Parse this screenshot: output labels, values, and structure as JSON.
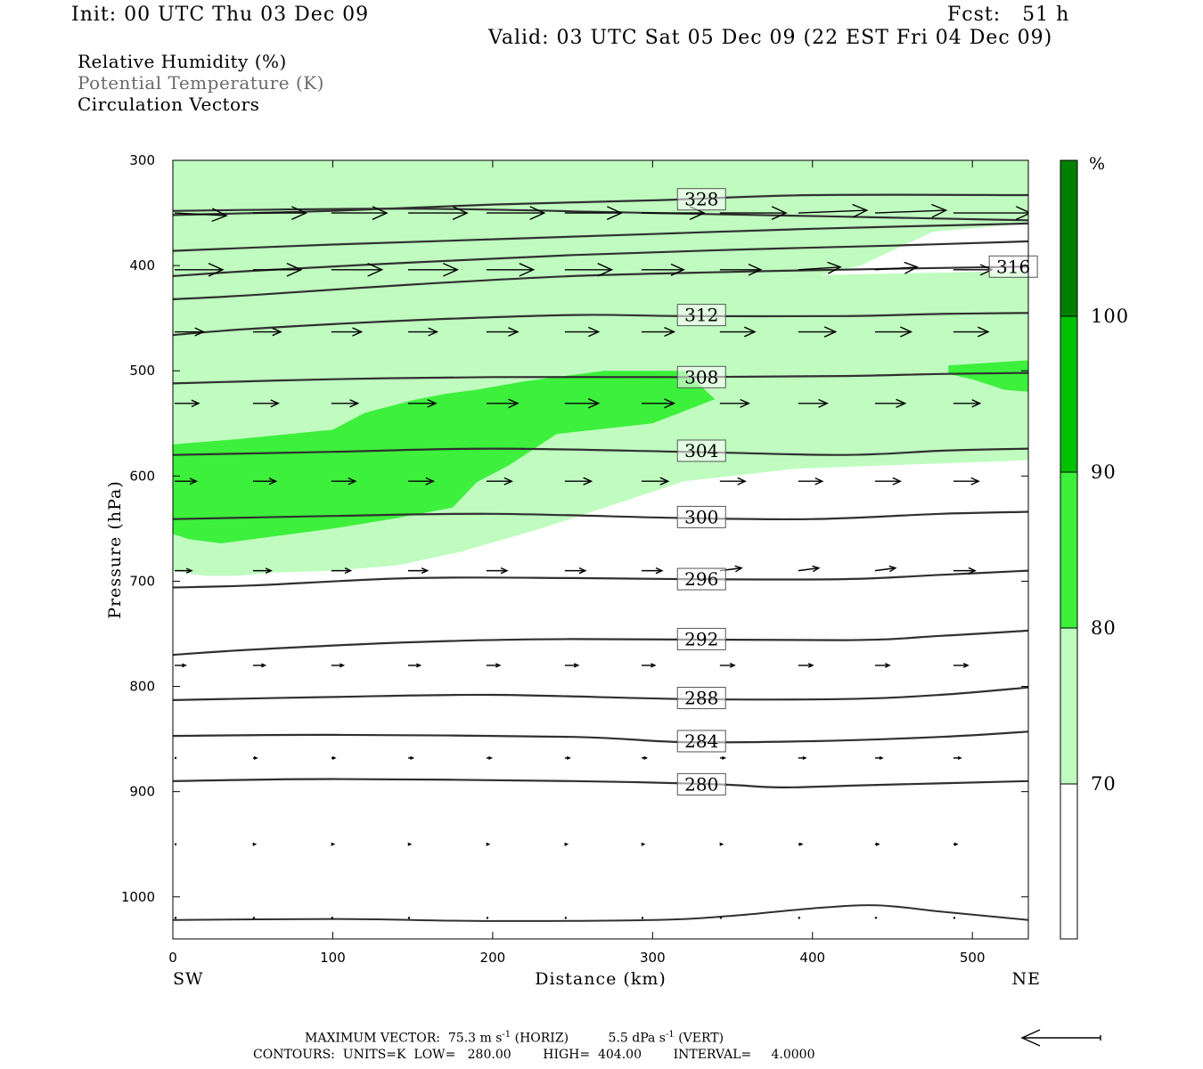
{
  "header": {
    "init": "Init: 00 UTC Thu 03 Dec 09",
    "fcst": "Fcst:   51 h",
    "valid": "Valid: 03 UTC Sat 05 Dec 09 (22 EST Fri 04 Dec 09)"
  },
  "legend": {
    "rh": "Relative Humidity (%)",
    "theta": "Potential Temperature (K)",
    "vectors": "Circulation Vectors"
  },
  "footer": {
    "max_vector_prefix": "MAXIMUM VECTOR:  75.3 m s",
    "max_vector_horiz_suffix": " (HORIZ)",
    "max_vector_vert_prefix": "5.5 dPa s",
    "max_vector_vert_suffix": " (VERT)",
    "exponent": "-1",
    "contours": "CONTOURS:  UNITS=K  LOW=   280.00        HIGH=  404.00        INTERVAL=     4.0000"
  },
  "colors": {
    "rh_70": "#c0fcc0",
    "rh_80": "#3cf03c",
    "rh_90": "#00c000",
    "rh_100": "#008000",
    "contour": "#303030"
  },
  "chart_data": {
    "type": "cross-section",
    "x_label": "Distance (km)",
    "y_label": "Pressure (hPa)",
    "x_range": [
      0,
      535
    ],
    "y_range": [
      300,
      1040
    ],
    "y_log": false,
    "x_ticks": [
      "0",
      "100",
      "200",
      "300",
      "400",
      "500"
    ],
    "x_tick_values": [
      0,
      100,
      200,
      300,
      400,
      500
    ],
    "y_ticks": [
      "300",
      "400",
      "500",
      "600",
      "700",
      "800",
      "900",
      "1000"
    ],
    "y_tick_values": [
      300,
      400,
      500,
      600,
      700,
      800,
      900,
      1000
    ],
    "x_end_labels": {
      "left": "SW",
      "right": "NE"
    },
    "colorbar": {
      "unit": "%",
      "levels": [
        "70",
        "80",
        "90",
        "100"
      ],
      "level_values": [
        70,
        80,
        90,
        100
      ]
    },
    "rh_regions": [
      {
        "level": 70,
        "polygon": [
          [
            0,
            300
          ],
          [
            330,
            300
          ],
          [
            535,
            300
          ],
          [
            535,
            360
          ],
          [
            475,
            368
          ],
          [
            430,
            400
          ],
          [
            380,
            418
          ],
          [
            300,
            432
          ],
          [
            250,
            452
          ],
          [
            200,
            475
          ],
          [
            150,
            500
          ],
          [
            110,
            515
          ],
          [
            80,
            530
          ],
          [
            60,
            540
          ],
          [
            40,
            556
          ],
          [
            20,
            568
          ],
          [
            0,
            575
          ]
        ]
      },
      {
        "level": 70,
        "polygon": [
          [
            0,
            430
          ],
          [
            100,
            428
          ],
          [
            0,
            447
          ]
        ]
      },
      {
        "level": 70,
        "polygon": [
          [
            110,
            418
          ],
          [
            535,
            405
          ],
          [
            535,
            585
          ],
          [
            480,
            588
          ],
          [
            390,
            593
          ],
          [
            320,
            605
          ],
          [
            280,
            625
          ],
          [
            230,
            650
          ],
          [
            180,
            672
          ],
          [
            140,
            685
          ],
          [
            100,
            690
          ],
          [
            60,
            692
          ],
          [
            40,
            695
          ],
          [
            20,
            695
          ],
          [
            0,
            690
          ],
          [
            0,
            430
          ],
          [
            45,
            400
          ],
          [
            100,
            402
          ]
        ]
      },
      {
        "level": 80,
        "polygon": [
          [
            0,
            570
          ],
          [
            40,
            565
          ],
          [
            100,
            556
          ],
          [
            120,
            540
          ],
          [
            150,
            528
          ],
          [
            170,
            522
          ],
          [
            190,
            518
          ],
          [
            220,
            510
          ],
          [
            270,
            500
          ],
          [
            320,
            500
          ],
          [
            339,
            527
          ],
          [
            300,
            550
          ],
          [
            240,
            560
          ],
          [
            220,
            580
          ],
          [
            210,
            590
          ],
          [
            190,
            606
          ],
          [
            175,
            630
          ],
          [
            140,
            640
          ],
          [
            100,
            650
          ],
          [
            50,
            660
          ],
          [
            30,
            664
          ],
          [
            10,
            660
          ],
          [
            0,
            655
          ]
        ]
      },
      {
        "level": 80,
        "polygon": [
          [
            485,
            495
          ],
          [
            535,
            490
          ],
          [
            535,
            520
          ],
          [
            520,
            518
          ],
          [
            500,
            508
          ],
          [
            485,
            503
          ]
        ]
      }
    ],
    "contours": [
      {
        "value": 280,
        "label": true,
        "points": [
          [
            0,
            890
          ],
          [
            100,
            888
          ],
          [
            250,
            890
          ],
          [
            340,
            893
          ],
          [
            380,
            896
          ],
          [
            430,
            894
          ],
          [
            535,
            890
          ]
        ]
      },
      {
        "value": 284,
        "label": true,
        "points": [
          [
            0,
            847
          ],
          [
            100,
            846
          ],
          [
            250,
            848
          ],
          [
            320,
            853
          ],
          [
            400,
            852
          ],
          [
            480,
            848
          ],
          [
            535,
            843
          ]
        ]
      },
      {
        "value": 288,
        "label": true,
        "points": [
          [
            0,
            813
          ],
          [
            100,
            810
          ],
          [
            200,
            808
          ],
          [
            320,
            812
          ],
          [
            420,
            812
          ],
          [
            480,
            808
          ],
          [
            535,
            801
          ]
        ]
      },
      {
        "value": 292,
        "label": true,
        "points": [
          [
            0,
            770
          ],
          [
            50,
            765
          ],
          [
            150,
            758
          ],
          [
            250,
            755
          ],
          [
            420,
            756
          ],
          [
            480,
            752
          ],
          [
            535,
            747
          ]
        ]
      },
      {
        "value": 296,
        "label": true,
        "points": [
          [
            0,
            706
          ],
          [
            50,
            704
          ],
          [
            150,
            697
          ],
          [
            250,
            697
          ],
          [
            320,
            698
          ],
          [
            420,
            698
          ],
          [
            480,
            694
          ],
          [
            535,
            690
          ]
        ]
      },
      {
        "value": 300,
        "label": true,
        "points": [
          [
            0,
            641
          ],
          [
            100,
            638
          ],
          [
            200,
            636
          ],
          [
            320,
            640
          ],
          [
            400,
            641
          ],
          [
            480,
            636
          ],
          [
            535,
            634
          ]
        ]
      },
      {
        "value": 304,
        "label": true,
        "points": [
          [
            0,
            580
          ],
          [
            100,
            577
          ],
          [
            200,
            574
          ],
          [
            320,
            577
          ],
          [
            420,
            580
          ],
          [
            480,
            576
          ],
          [
            535,
            574
          ]
        ]
      },
      {
        "value": 308,
        "label": true,
        "points": [
          [
            0,
            512
          ],
          [
            100,
            508
          ],
          [
            200,
            506
          ],
          [
            320,
            506
          ],
          [
            420,
            505
          ],
          [
            480,
            503
          ],
          [
            535,
            502
          ]
        ]
      },
      {
        "value": 312,
        "label": true,
        "points": [
          [
            0,
            466
          ],
          [
            50,
            460
          ],
          [
            150,
            452
          ],
          [
            250,
            447
          ],
          [
            320,
            448
          ],
          [
            420,
            448
          ],
          [
            480,
            446
          ],
          [
            535,
            445
          ]
        ]
      },
      {
        "value": 316,
        "label": true,
        "points": [
          [
            0,
            432
          ],
          [
            50,
            428
          ],
          [
            150,
            418
          ],
          [
            250,
            410
          ],
          [
            350,
            406
          ],
          [
            450,
            403
          ],
          [
            535,
            401
          ]
        ]
      },
      {
        "value": 320,
        "label": false,
        "points": [
          [
            0,
            410
          ],
          [
            50,
            405
          ],
          [
            150,
            397
          ],
          [
            250,
            390
          ],
          [
            350,
            385
          ],
          [
            450,
            381
          ],
          [
            535,
            377
          ]
        ]
      },
      {
        "value": 324,
        "label": false,
        "points": [
          [
            0,
            386
          ],
          [
            100,
            380
          ],
          [
            200,
            375
          ],
          [
            300,
            370
          ],
          [
            400,
            365
          ],
          [
            535,
            360
          ]
        ]
      },
      {
        "value": 328,
        "label": true,
        "points": [
          [
            0,
            352
          ],
          [
            100,
            348
          ],
          [
            200,
            342
          ],
          [
            300,
            338
          ],
          [
            400,
            333
          ],
          [
            535,
            333
          ]
        ]
      },
      {
        "value": 332,
        "label": false,
        "points": [
          [
            0,
            348
          ],
          [
            150,
            346
          ],
          [
            300,
            350
          ],
          [
            535,
            357
          ]
        ]
      }
    ],
    "contour_label_positions": [
      {
        "value": 280,
        "x": 315,
        "p": 893
      },
      {
        "value": 284,
        "x": 315,
        "p": 852
      },
      {
        "value": 288,
        "x": 315,
        "p": 811
      },
      {
        "value": 292,
        "x": 315,
        "p": 755
      },
      {
        "value": 296,
        "x": 315,
        "p": 698
      },
      {
        "value": 300,
        "x": 315,
        "p": 639
      },
      {
        "value": 304,
        "x": 315,
        "p": 576
      },
      {
        "value": 308,
        "x": 315,
        "p": 506
      },
      {
        "value": 312,
        "x": 315,
        "p": 447
      },
      {
        "value": 316,
        "x": 510,
        "p": 401
      },
      {
        "value": 328,
        "x": 315,
        "p": 337
      }
    ],
    "vector_rows": [
      {
        "p": 350,
        "x": [
          0,
          49,
          98,
          146,
          195,
          244,
          292,
          341,
          390,
          438,
          487
        ],
        "u": [
          43,
          44,
          46,
          49,
          48,
          47,
          52,
          55,
          57,
          59,
          64
        ],
        "w": [
          -1,
          0,
          0,
          0,
          0,
          0,
          0,
          0,
          1,
          1,
          0
        ]
      },
      {
        "p": 404,
        "x": [
          0,
          49,
          98,
          146,
          195,
          244,
          292,
          341,
          390,
          438,
          487
        ],
        "u": [
          40,
          40,
          42,
          41,
          39,
          39,
          35,
          34,
          35,
          35,
          32
        ],
        "w": [
          0,
          0,
          0,
          0,
          0,
          0,
          0,
          0,
          1,
          1,
          0
        ]
      },
      {
        "p": 463,
        "x": [
          0,
          49,
          98,
          146,
          195,
          244,
          292,
          341,
          390,
          438,
          487
        ],
        "u": [
          24,
          23,
          25,
          24,
          26,
          28,
          27,
          29,
          31,
          30,
          29
        ],
        "w": [
          0,
          0,
          0,
          0,
          0,
          0,
          0,
          0,
          0,
          0,
          0
        ]
      },
      {
        "p": 531,
        "x": [
          0,
          49,
          98,
          146,
          195,
          244,
          292,
          341,
          390,
          438,
          487
        ],
        "u": [
          20,
          21,
          22,
          23,
          26,
          28,
          27,
          24,
          24,
          25,
          22
        ],
        "w": [
          0,
          0,
          0,
          0,
          0,
          0,
          0,
          0,
          0,
          0,
          0
        ]
      },
      {
        "p": 605,
        "x": [
          0,
          49,
          98,
          146,
          195,
          244,
          292,
          341,
          390,
          438,
          487
        ],
        "u": [
          18,
          19,
          20,
          21,
          21,
          22,
          22,
          21,
          20,
          21,
          21
        ],
        "w": [
          0,
          0,
          0,
          0,
          0,
          0,
          0,
          0,
          0,
          0,
          0
        ]
      },
      {
        "p": 690,
        "x": [
          0,
          49,
          98,
          146,
          195,
          244,
          292,
          341,
          390,
          438,
          487
        ],
        "u": [
          14,
          15,
          16,
          16,
          17,
          17,
          17,
          18,
          17,
          17,
          18
        ],
        "w": [
          0,
          0,
          0,
          0,
          0,
          0,
          0,
          1,
          1,
          1,
          0
        ]
      },
      {
        "p": 780,
        "x": [
          0,
          49,
          98,
          146,
          195,
          244,
          292,
          341,
          390,
          438,
          487
        ],
        "u": [
          9,
          10,
          10,
          10,
          11,
          11,
          11,
          12,
          12,
          12,
          12
        ],
        "w": [
          0,
          0,
          0,
          0,
          0,
          0,
          0,
          0,
          0,
          0,
          0
        ]
      },
      {
        "p": 868,
        "x": [
          0,
          49,
          98,
          146,
          195,
          244,
          292,
          341,
          390,
          438,
          487
        ],
        "u": [
          0,
          3,
          3,
          4,
          4,
          4,
          4,
          4,
          6,
          6,
          6
        ],
        "w": [
          0,
          0,
          0,
          0,
          0,
          0,
          0,
          0,
          0,
          0,
          0
        ]
      },
      {
        "p": 950,
        "x": [
          0,
          49,
          98,
          146,
          195,
          244,
          292,
          341,
          390,
          438,
          487
        ],
        "u": [
          0,
          2,
          2,
          2,
          2,
          2,
          2,
          2,
          3,
          3,
          3
        ],
        "w": [
          0,
          0,
          0,
          0,
          0,
          0,
          0,
          0,
          0,
          0,
          0
        ]
      },
      {
        "p": 1020,
        "x": [
          0,
          49,
          98,
          146,
          195,
          244,
          292,
          341,
          390,
          438,
          487
        ],
        "u": [
          0,
          1,
          1,
          1,
          1,
          1,
          1,
          1,
          1,
          1,
          1
        ],
        "w": [
          0,
          0,
          0,
          0,
          0,
          0,
          0,
          0,
          0,
          0,
          0
        ]
      }
    ],
    "terrain_surface": [
      [
        0,
        1022
      ],
      [
        100,
        1021
      ],
      [
        150,
        1022
      ],
      [
        200,
        1023
      ],
      [
        300,
        1022
      ],
      [
        350,
        1018
      ],
      [
        400,
        1011
      ],
      [
        440,
        1008
      ],
      [
        480,
        1014
      ],
      [
        535,
        1022
      ]
    ]
  }
}
